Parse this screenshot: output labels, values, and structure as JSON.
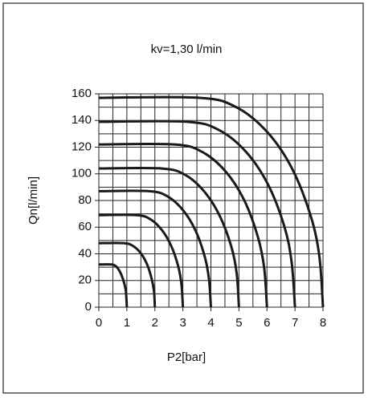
{
  "chart_data": {
    "type": "line",
    "title": "kv=1,30 l/min",
    "x_label": "P2[bar]",
    "y_label": "Qn[l/min]",
    "xlim": [
      0,
      8
    ],
    "ylim": [
      0,
      160
    ],
    "xticks": [
      0,
      1,
      2,
      3,
      4,
      5,
      6,
      7,
      8
    ],
    "yticks": [
      0,
      20,
      40,
      60,
      80,
      100,
      120,
      140,
      160
    ],
    "grid": true,
    "xgrid": [
      0,
      0.5,
      1,
      1.5,
      2,
      2.5,
      3,
      3.5,
      4,
      4.5,
      5,
      5.5,
      6,
      6.5,
      7,
      7.5,
      8
    ],
    "ygrid": [
      0,
      10,
      20,
      30,
      40,
      50,
      60,
      70,
      80,
      90,
      100,
      110,
      120,
      130,
      140,
      150,
      160
    ],
    "color": "#1a1a1a",
    "series": [
      {
        "x": [
          0,
          0.45,
          0.62,
          0.75,
          0.86,
          0.95,
          0.98,
          1
        ],
        "values": [
          32,
          32,
          30.5,
          26.7,
          21.2,
          14,
          7.8,
          0
        ]
      },
      {
        "x": [
          0,
          0.9,
          1.23,
          1.51,
          1.73,
          1.89,
          1.97,
          2
        ],
        "values": [
          48,
          48,
          45.8,
          40.1,
          31.7,
          20.9,
          11.7,
          0
        ]
      },
      {
        "x": [
          0,
          1.35,
          1.85,
          2.26,
          2.59,
          2.84,
          2.95,
          3
        ],
        "values": [
          69,
          69,
          65.8,
          57.6,
          45.6,
          30.1,
          16.8,
          0
        ]
      },
      {
        "x": [
          0,
          1.8,
          2.46,
          3.01,
          3.45,
          3.78,
          3.93,
          4
        ],
        "values": [
          87,
          87,
          83,
          72.6,
          57.5,
          37.9,
          21.1,
          0
        ]
      },
      {
        "x": [
          0,
          2.25,
          3.08,
          3.76,
          4.31,
          4.73,
          4.92,
          5
        ],
        "values": [
          104,
          104,
          99.2,
          86.8,
          68.7,
          45.3,
          25.3,
          0
        ]
      },
      {
        "x": [
          0,
          2.7,
          3.69,
          4.52,
          5.18,
          5.67,
          5.9,
          6
        ],
        "values": [
          122,
          122,
          116.4,
          101.9,
          80.6,
          53.2,
          29.6,
          0
        ]
      },
      {
        "x": [
          0,
          3.15,
          4.31,
          5.27,
          6.04,
          6.62,
          6.88,
          7
        ],
        "values": [
          139,
          139,
          132.6,
          116.1,
          91.9,
          60.6,
          33.8,
          0
        ]
      },
      {
        "x": [
          0,
          3.6,
          4.92,
          6.02,
          6.9,
          7.56,
          7.87,
          8
        ],
        "values": [
          157,
          157,
          149.8,
          131.1,
          103.8,
          68.5,
          38.2,
          0
        ]
      }
    ]
  }
}
